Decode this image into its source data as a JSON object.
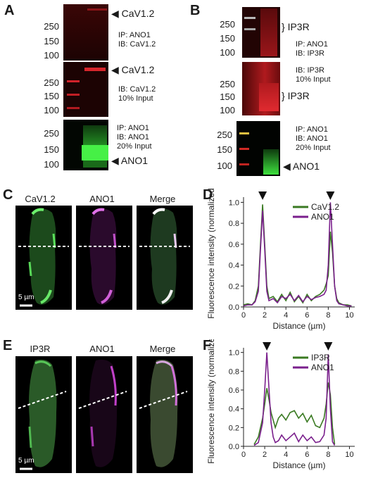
{
  "panel_letters": {
    "a": "A",
    "b": "B",
    "c": "C",
    "d": "D",
    "e": "E",
    "f": "F"
  },
  "panelA": {
    "blot1": {
      "mw": [
        "250",
        "150",
        "100"
      ],
      "band": "CaV1.2",
      "ip": "IP: ANO1",
      "ib": "IB: CaV1.2"
    },
    "blot2": {
      "mw": [
        "250",
        "150",
        "100"
      ],
      "band": "CaV1.2",
      "ib": "IB: CaV1.2",
      "input": "10% Input"
    },
    "blot3": {
      "mw": [
        "250",
        "150",
        "100"
      ],
      "band": "ANO1",
      "ip": "IP: ANO1",
      "ib": "IB: ANO1",
      "input": "20% Input"
    }
  },
  "panelB": {
    "blot1": {
      "mw": [
        "250",
        "150",
        "100"
      ],
      "band": "IP3R",
      "ip": "IP: ANO1",
      "ib": "IB: IP3R"
    },
    "blot2": {
      "mw": [
        "250",
        "150",
        "100"
      ],
      "band": "IP3R",
      "ib": "IB: IP3R",
      "input": "10% Input"
    },
    "blot3": {
      "mw": [
        "250",
        "150",
        "100"
      ],
      "band": "ANO1",
      "ip": "IP: ANO1",
      "ib": "IB: ANO1",
      "input": "20% Input"
    }
  },
  "panelC": {
    "titles": [
      "CaV1.2",
      "ANO1",
      "Merge"
    ],
    "scale": "5 µm"
  },
  "panelE": {
    "titles": [
      "IP3R",
      "ANO1",
      "Merge"
    ],
    "scale": "5 µm"
  },
  "colors": {
    "green": "#3a7a22",
    "purple": "#7a1f8c",
    "blot_red": "#c0181e",
    "blot_green": "#3ee83e"
  },
  "chart_data": [
    {
      "type": "line",
      "panel": "D",
      "xlabel": "Distance (µm)",
      "ylabel": "Fluorescence intensity (normalized)",
      "xlim": [
        0,
        10.5
      ],
      "ylim": [
        0,
        1.05
      ],
      "xticks": [
        0,
        2,
        4,
        6,
        8,
        10
      ],
      "yticks": [
        0.0,
        0.2,
        0.4,
        0.6,
        0.8,
        1.0
      ],
      "legend_position": "top-right",
      "grid": false,
      "series": [
        {
          "name": "CaV1.2",
          "color": "#3a7a22",
          "x": [
            0,
            0.4,
            0.8,
            1.1,
            1.4,
            1.6,
            1.8,
            2.0,
            2.2,
            2.4,
            2.8,
            3.2,
            3.6,
            4.0,
            4.4,
            4.8,
            5.2,
            5.6,
            6.0,
            6.4,
            6.8,
            7.2,
            7.6,
            7.8,
            8.0,
            8.2,
            8.4,
            8.6,
            8.8,
            9.0,
            9.4,
            9.8,
            10.2
          ],
          "y": [
            0.02,
            0.03,
            0.02,
            0.06,
            0.2,
            0.6,
            0.98,
            0.6,
            0.2,
            0.08,
            0.1,
            0.05,
            0.12,
            0.06,
            0.14,
            0.05,
            0.1,
            0.04,
            0.12,
            0.06,
            0.1,
            0.12,
            0.16,
            0.22,
            0.3,
            0.72,
            0.52,
            0.2,
            0.08,
            0.04,
            0.02,
            0.02,
            0.01
          ]
        },
        {
          "name": "ANO1",
          "color": "#7a1f8c",
          "x": [
            0,
            0.4,
            0.8,
            1.1,
            1.4,
            1.6,
            1.8,
            2.0,
            2.2,
            2.4,
            2.8,
            3.2,
            3.6,
            4.0,
            4.4,
            4.8,
            5.2,
            5.6,
            6.0,
            6.4,
            6.8,
            7.2,
            7.6,
            7.8,
            8.0,
            8.2,
            8.4,
            8.6,
            8.8,
            9.0,
            9.4,
            9.8,
            10.2
          ],
          "y": [
            0.01,
            0.02,
            0.02,
            0.05,
            0.15,
            0.55,
            0.92,
            0.55,
            0.15,
            0.06,
            0.08,
            0.04,
            0.1,
            0.08,
            0.12,
            0.06,
            0.11,
            0.05,
            0.1,
            0.07,
            0.09,
            0.1,
            0.12,
            0.16,
            0.4,
            1.0,
            0.6,
            0.2,
            0.06,
            0.03,
            0.02,
            0.01,
            0.01
          ]
        }
      ]
    },
    {
      "type": "line",
      "panel": "F",
      "xlabel": "Distance (µm)",
      "ylabel": "Fluorescence intensity (normalized)",
      "xlim": [
        0,
        10.5
      ],
      "ylim": [
        0,
        1.05
      ],
      "xticks": [
        0,
        2,
        4,
        6,
        8,
        10
      ],
      "yticks": [
        0.0,
        0.2,
        0.4,
        0.6,
        0.8,
        1.0
      ],
      "legend_position": "top-right",
      "grid": false,
      "series": [
        {
          "name": "IP3R",
          "color": "#3a7a22",
          "x": [
            1.0,
            1.4,
            1.8,
            2.0,
            2.2,
            2.4,
            2.6,
            2.8,
            3.0,
            3.3,
            3.6,
            4.0,
            4.4,
            4.8,
            5.2,
            5.6,
            6.0,
            6.4,
            6.8,
            7.2,
            7.6,
            7.8,
            8.0,
            8.2,
            8.4,
            8.6
          ],
          "y": [
            0.02,
            0.1,
            0.3,
            0.45,
            0.62,
            0.5,
            0.36,
            0.28,
            0.2,
            0.3,
            0.34,
            0.28,
            0.36,
            0.38,
            0.3,
            0.35,
            0.26,
            0.33,
            0.22,
            0.2,
            0.3,
            0.45,
            0.68,
            0.55,
            0.2,
            0.02
          ]
        },
        {
          "name": "ANO1",
          "color": "#7a1f8c",
          "x": [
            1.0,
            1.4,
            1.8,
            2.0,
            2.2,
            2.4,
            2.6,
            2.8,
            3.0,
            3.3,
            3.6,
            4.0,
            4.4,
            4.8,
            5.2,
            5.6,
            6.0,
            6.4,
            6.8,
            7.2,
            7.6,
            7.8,
            8.0,
            8.2,
            8.4,
            8.6
          ],
          "y": [
            0.01,
            0.04,
            0.25,
            0.6,
            1.0,
            0.62,
            0.25,
            0.1,
            0.04,
            0.06,
            0.12,
            0.06,
            0.1,
            0.14,
            0.05,
            0.12,
            0.06,
            0.1,
            0.04,
            0.05,
            0.12,
            0.3,
            0.98,
            0.4,
            0.05,
            0.01
          ]
        }
      ]
    }
  ]
}
